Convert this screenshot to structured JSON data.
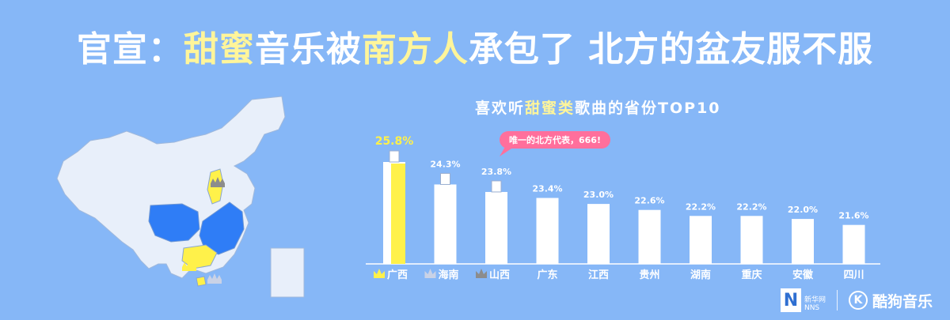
{
  "headline": {
    "prefix": "官宣：",
    "hl1": "甜蜜",
    "mid1": "音乐被",
    "hl2": "南方人",
    "rest": "承包了  北方的盆友服不服"
  },
  "chart_data": {
    "type": "bar",
    "title_pre": "喜欢听",
    "title_hl": "甜蜜类",
    "title_post": "歌曲的省份TOP10",
    "categories": [
      "广西",
      "海南",
      "山西",
      "广东",
      "江西",
      "贵州",
      "湖南",
      "重庆",
      "安徽",
      "四川"
    ],
    "values": [
      25.8,
      24.3,
      23.8,
      23.4,
      23.0,
      22.6,
      22.2,
      22.2,
      22.0,
      21.6
    ],
    "value_labels": [
      "25.8%",
      "24.3%",
      "23.8%",
      "23.4%",
      "23.0%",
      "22.6%",
      "22.2%",
      "22.2%",
      "22.0%",
      "21.6%"
    ],
    "crowns": [
      "gold",
      "silver",
      "bronze"
    ],
    "highlight_index": 0,
    "annotation": "唯一的北方代表，666!",
    "colors": {
      "background": "#86b7f7",
      "bar": "#ffffff",
      "highlight": "#fff14a",
      "gold": "#fff14a",
      "silver": "#c9d2e6",
      "bronze": "#8c8c8c",
      "annotation_bg": "#ff6f9c"
    }
  },
  "footer": {
    "xinhua_mark": "N",
    "xinhua_text": "新华网",
    "xinhua_sub": "NNS",
    "kugou_icon": "K",
    "kugou_label": "酷狗音乐"
  }
}
